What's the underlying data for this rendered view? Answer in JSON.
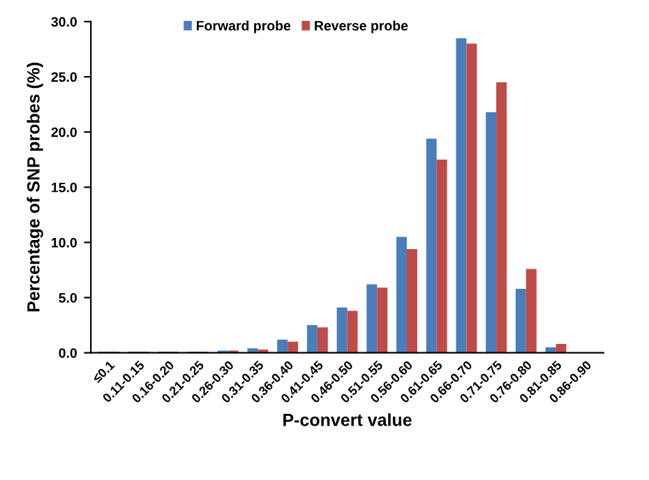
{
  "chart_data": {
    "type": "bar",
    "xlabel": "P-convert value",
    "ylabel": "Percentage of SNP probes (%)",
    "categories": [
      "≤0.1",
      "0.11-0.15",
      "0.16-0.20",
      "0.21-0.25",
      "0.26-0.30",
      "0.31-0.35",
      "0.36-0.40",
      "0.41-0.45",
      "0.46-0.50",
      "0.51-0.55",
      "0.56-0.60",
      "0.61-0.65",
      "0.66-0.70",
      "0.71-0.75",
      "0.76-0.80",
      "0.81-0.85",
      "0.86-0.90"
    ],
    "series": [
      {
        "name": "Forward probe",
        "color": "#4a7ebb",
        "values": [
          0.1,
          0.1,
          0.1,
          0.1,
          0.2,
          0.4,
          1.2,
          2.5,
          4.1,
          6.2,
          10.5,
          19.4,
          28.5,
          21.8,
          5.8,
          0.5,
          0
        ]
      },
      {
        "name": "Reverse probe",
        "color": "#be4b48",
        "values": [
          0.1,
          0.1,
          0.1,
          0.1,
          0.2,
          0.3,
          1.0,
          2.3,
          3.8,
          5.9,
          9.4,
          17.5,
          28.0,
          24.5,
          7.6,
          0.8,
          0
        ]
      }
    ],
    "ylim": [
      0,
      30
    ],
    "yticks": [
      {
        "value": 0,
        "label": "0.0"
      },
      {
        "value": 5,
        "label": "5.0"
      },
      {
        "value": 10,
        "label": "10.0"
      },
      {
        "value": 15,
        "label": "15.0"
      },
      {
        "value": 20,
        "label": "20.0"
      },
      {
        "value": 25,
        "label": "25.0"
      },
      {
        "value": 30,
        "label": "30.0"
      }
    ],
    "grid": false,
    "legend": "top"
  }
}
